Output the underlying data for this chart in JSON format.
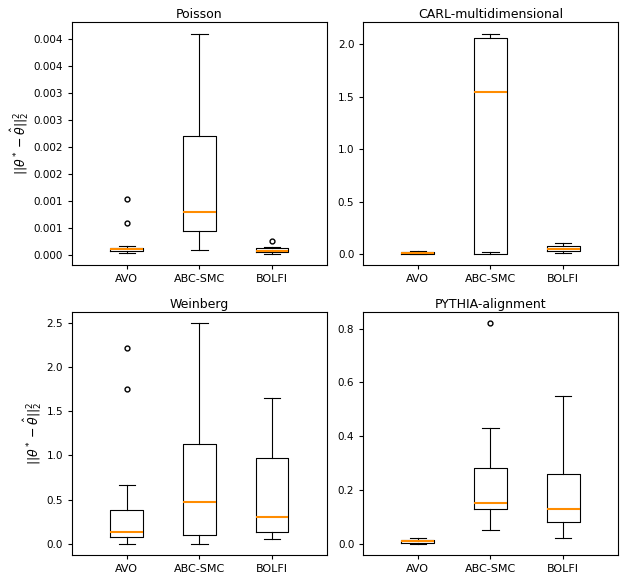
{
  "titles": [
    "Poisson",
    "CARL-multidimensional",
    "Weinberg",
    "PYTHIA-alignment"
  ],
  "ylabel": "$||\\theta^* - \\hat{\\theta}||_2^2$",
  "categories": [
    "AVO",
    "ABC-SMC",
    "BOLFI"
  ],
  "median_color": "#ff8c00",
  "plots": {
    "Poisson": {
      "AVO": {
        "q1": 8e-05,
        "median": 0.00011,
        "q3": 0.000145,
        "whislo": 4e-05,
        "whishi": 0.000175,
        "fliers": [
          0.0006,
          0.00105
        ]
      },
      "ABC-SMC": {
        "q1": 0.00045,
        "median": 0.0008,
        "q3": 0.0022,
        "whislo": 0.0001,
        "whishi": 0.0041,
        "fliers": []
      },
      "BOLFI": {
        "q1": 6e-05,
        "median": 8.5e-05,
        "q3": 0.00013,
        "whislo": 2.5e-05,
        "whishi": 0.00016,
        "fliers": [
          0.00027
        ]
      }
    },
    "CARL-multidimensional": {
      "AVO": {
        "q1": 0.003,
        "median": 0.01,
        "q3": 0.018,
        "whislo": 0.0,
        "whishi": 0.025,
        "fliers": []
      },
      "ABC-SMC": {
        "q1": 0.0,
        "median": 1.54,
        "q3": 2.06,
        "whislo": 0.02,
        "whishi": 2.1,
        "fliers": []
      },
      "BOLFI": {
        "q1": 0.028,
        "median": 0.052,
        "q3": 0.078,
        "whislo": 0.01,
        "whishi": 0.105,
        "fliers": []
      }
    },
    "Weinberg": {
      "AVO": {
        "q1": 0.08,
        "median": 0.13,
        "q3": 0.38,
        "whislo": 0.0,
        "whishi": 0.66,
        "fliers": [
          1.75,
          2.22
        ]
      },
      "ABC-SMC": {
        "q1": 0.1,
        "median": 0.47,
        "q3": 1.13,
        "whislo": 0.0,
        "whishi": 2.5,
        "fliers": []
      },
      "BOLFI": {
        "q1": 0.13,
        "median": 0.3,
        "q3": 0.97,
        "whislo": 0.05,
        "whishi": 1.65,
        "fliers": []
      }
    },
    "PYTHIA-alignment": {
      "AVO": {
        "q1": 0.002,
        "median": 0.008,
        "q3": 0.015,
        "whislo": 0.0,
        "whishi": 0.02,
        "fliers": []
      },
      "ABC-SMC": {
        "q1": 0.13,
        "median": 0.15,
        "q3": 0.28,
        "whislo": 0.05,
        "whishi": 0.43,
        "fliers": [
          0.82
        ]
      },
      "BOLFI": {
        "q1": 0.08,
        "median": 0.13,
        "q3": 0.26,
        "whislo": 0.02,
        "whishi": 0.55,
        "fliers": []
      }
    }
  }
}
